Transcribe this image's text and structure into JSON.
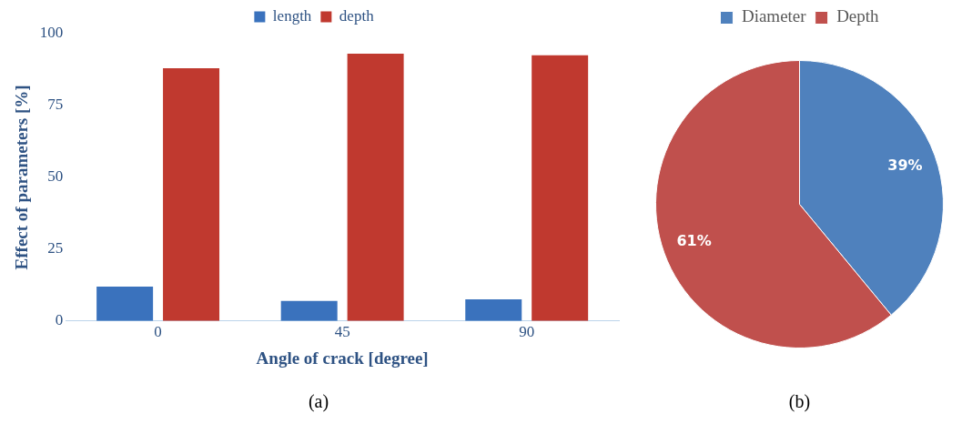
{
  "chart_data": [
    {
      "type": "bar",
      "xlabel": "Angle of crack [degree]",
      "ylabel": "Effect of parameters [%]",
      "categories": [
        "0",
        "45",
        "90"
      ],
      "series": [
        {
          "name": "length",
          "color": "#3a72bd",
          "values": [
            12,
            7,
            7.5
          ]
        },
        {
          "name": "depth",
          "color": "#c0392f",
          "values": [
            88,
            93,
            92.5
          ]
        }
      ],
      "ylim": [
        0,
        100
      ],
      "yticks": [
        0,
        25,
        50,
        75,
        100
      ],
      "grid": false,
      "legend": "top",
      "annotations": [
        "(a)"
      ]
    },
    {
      "type": "pie",
      "categories": [
        "Diameter",
        "Depth"
      ],
      "values": [
        39,
        61
      ],
      "colors": [
        "#4f81bd",
        "#c0504d"
      ],
      "value_labels": [
        "39%",
        "61%"
      ],
      "legend": "top",
      "annotations": [
        "(b)"
      ]
    }
  ]
}
